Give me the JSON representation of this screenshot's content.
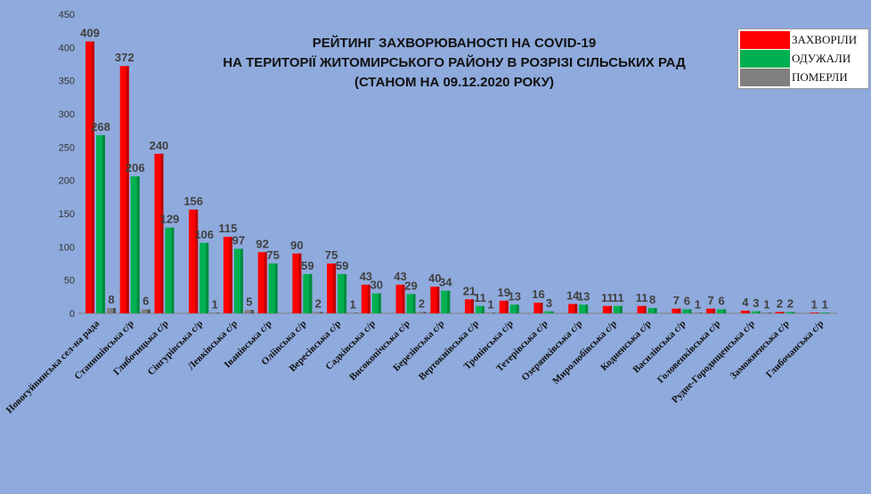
{
  "chart_data": {
    "type": "bar",
    "title_lines": [
      "РЕЙТИНГ ЗАХВОРЮВАНОСТІ НА COVID-19",
      "НА ТЕРИТОРІЇ ЖИТОМИРСЬКОГО РАЙОНУ В РОЗРІЗІ СІЛЬСЬКИХ РАД",
      "(СТАНОМ НА 09.12.2020 РОКУ)"
    ],
    "ylim": [
      0,
      450
    ],
    "yticks": [
      0,
      50,
      100,
      150,
      200,
      250,
      300,
      350,
      400,
      450
    ],
    "grid": false,
    "legend_position": "top-right",
    "categories": [
      "Новогуйвинська сел-на рада",
      "Станишівська с/р",
      "Глибочицька с/р",
      "Сінгурівська с/р",
      "Левківська с/р",
      "Іванівська с/р",
      "Оліївська с/р",
      "Вересівська с/р",
      "Садківська с/р",
      "Високопічська с/р",
      "Березівська с/р",
      "Вертокиївська с/р",
      "Тропівська с/р",
      "Тетерівська с/р",
      "Озерянківська с/р",
      "Миролюбівська с/р",
      "Кодненська с/р",
      "Василівська с/р",
      "Головенківська с/р",
      "Рудне-Городищенська с/р",
      "Заможненська с/р",
      "Глибочанська с/р"
    ],
    "series": [
      {
        "name": "ЗАХВОРІЛИ",
        "color": "#ff0000",
        "values": [
          409,
          372,
          240,
          156,
          115,
          92,
          90,
          75,
          43,
          43,
          40,
          21,
          19,
          16,
          14,
          11,
          11,
          7,
          7,
          4,
          2,
          1
        ]
      },
      {
        "name": "ОДУЖАЛИ",
        "color": "#00b050",
        "values": [
          268,
          206,
          129,
          106,
          97,
          75,
          59,
          59,
          30,
          29,
          34,
          11,
          13,
          3,
          13,
          11,
          8,
          6,
          6,
          3,
          2,
          1
        ]
      },
      {
        "name": "ПОМЕРЛИ",
        "color": "#7f7f7f",
        "values": [
          8,
          6,
          null,
          1,
          5,
          null,
          2,
          1,
          null,
          2,
          null,
          1,
          null,
          null,
          null,
          null,
          null,
          1,
          null,
          1,
          null,
          null
        ]
      }
    ]
  }
}
